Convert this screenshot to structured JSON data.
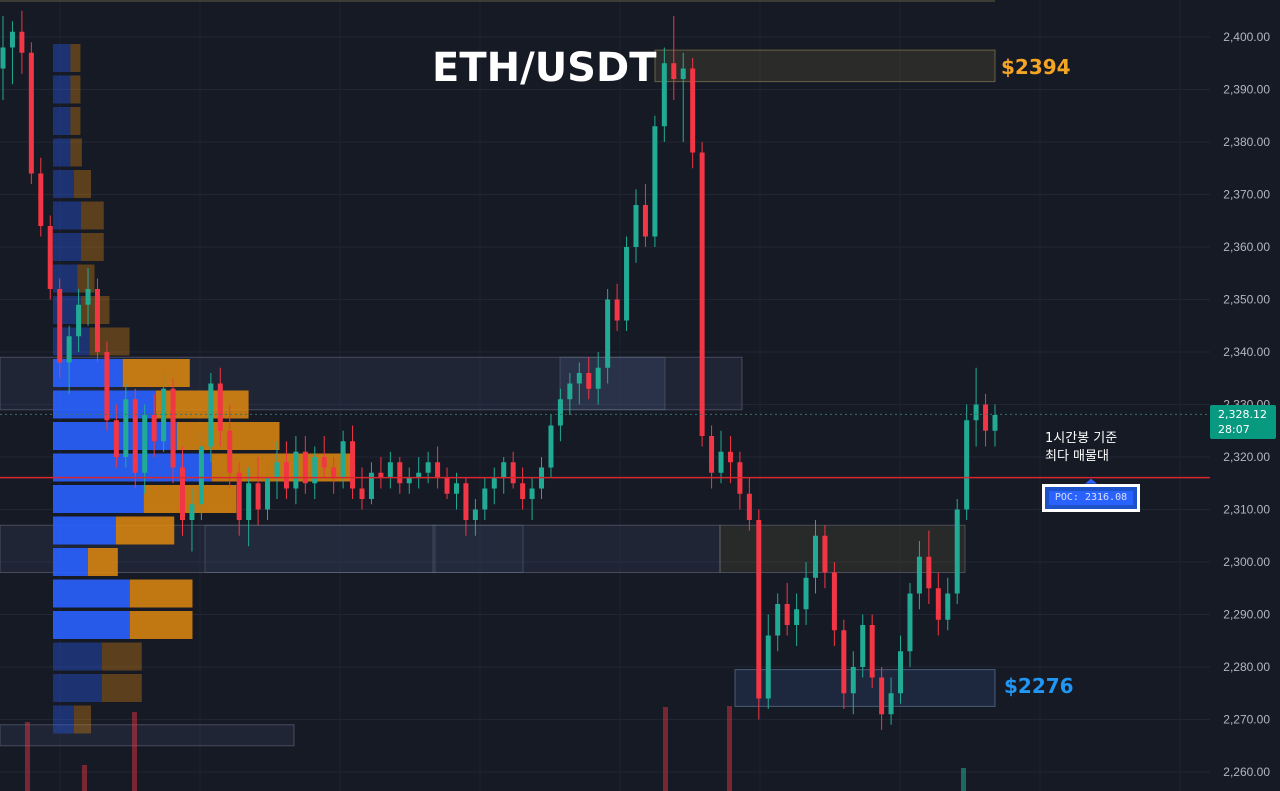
{
  "title": "ETH/USDT",
  "upper_zone_label": "$2394",
  "lower_zone_label": "$2276",
  "note": {
    "line1": "1시간봉 기준",
    "line2": "최다 매물대"
  },
  "poc_label": "POC: 2316.08",
  "current_price": {
    "price": "2,328.12",
    "countdown": "28:07"
  },
  "colors": {
    "background": "#161a25",
    "up": "#22ab94",
    "down": "#f23645",
    "upper_zone_label": "#f5a524",
    "lower_zone_label": "#2196f3",
    "poc_line": "#d9262f",
    "volume_profile_buy": "#2962ff",
    "volume_profile_sell": "#e08a0f",
    "axis_text": "#b2b5be"
  },
  "chart_data": {
    "type": "candlestick",
    "title": "ETH/USDT",
    "timeframe_note": "1시간봉 기준",
    "y_axis": {
      "ticks": [
        "2,400.00",
        "2,390.00",
        "2,380.00",
        "2,370.00",
        "2,360.00",
        "2,350.00",
        "2,340.00",
        "2,330.00",
        "2,320.00",
        "2,310.00",
        "2,300.00",
        "2,290.00",
        "2,280.00",
        "2,270.00",
        "2,260.00"
      ],
      "range": [
        2257,
        2406
      ]
    },
    "poc": 2316.08,
    "current_price": 2328.12,
    "resistance_zone": [
      2391.5,
      2397.5
    ],
    "support_zone": [
      2272.5,
      2279.5
    ],
    "supply_demand_zones": [
      {
        "low": 2329,
        "high": 2339
      },
      {
        "low": 2298,
        "high": 2307
      },
      {
        "low": 2298,
        "high": 2307
      },
      {
        "low": 2265,
        "high": 2269
      }
    ],
    "candles": [
      {
        "o": 2394,
        "h": 2404,
        "l": 2388,
        "c": 2398
      },
      {
        "o": 2398,
        "h": 2403,
        "l": 2391,
        "c": 2401
      },
      {
        "o": 2401,
        "h": 2405,
        "l": 2393,
        "c": 2397
      },
      {
        "o": 2397,
        "h": 2399,
        "l": 2372,
        "c": 2374
      },
      {
        "o": 2374,
        "h": 2377,
        "l": 2362,
        "c": 2364
      },
      {
        "o": 2364,
        "h": 2366,
        "l": 2350,
        "c": 2352
      },
      {
        "o": 2352,
        "h": 2354,
        "l": 2335,
        "c": 2338
      },
      {
        "o": 2338,
        "h": 2345,
        "l": 2332,
        "c": 2343
      },
      {
        "o": 2343,
        "h": 2352,
        "l": 2340,
        "c": 2349
      },
      {
        "o": 2349,
        "h": 2356,
        "l": 2345,
        "c": 2352
      },
      {
        "o": 2352,
        "h": 2354,
        "l": 2338,
        "c": 2340
      },
      {
        "o": 2340,
        "h": 2342,
        "l": 2325,
        "c": 2327
      },
      {
        "o": 2327,
        "h": 2330,
        "l": 2318,
        "c": 2320
      },
      {
        "o": 2320,
        "h": 2334,
        "l": 2318,
        "c": 2331
      },
      {
        "o": 2331,
        "h": 2333,
        "l": 2314,
        "c": 2317
      },
      {
        "o": 2317,
        "h": 2330,
        "l": 2313,
        "c": 2328
      },
      {
        "o": 2328,
        "h": 2332,
        "l": 2320,
        "c": 2323
      },
      {
        "o": 2323,
        "h": 2336,
        "l": 2321,
        "c": 2333
      },
      {
        "o": 2333,
        "h": 2335,
        "l": 2315,
        "c": 2318
      },
      {
        "o": 2318,
        "h": 2322,
        "l": 2305,
        "c": 2308
      },
      {
        "o": 2308,
        "h": 2314,
        "l": 2302,
        "c": 2311
      },
      {
        "o": 2311,
        "h": 2325,
        "l": 2308,
        "c": 2322
      },
      {
        "o": 2322,
        "h": 2336,
        "l": 2319,
        "c": 2334
      },
      {
        "o": 2334,
        "h": 2337,
        "l": 2322,
        "c": 2325
      },
      {
        "o": 2325,
        "h": 2330,
        "l": 2314,
        "c": 2317
      },
      {
        "o": 2317,
        "h": 2319,
        "l": 2305,
        "c": 2308
      },
      {
        "o": 2308,
        "h": 2318,
        "l": 2303,
        "c": 2315
      },
      {
        "o": 2315,
        "h": 2320,
        "l": 2307,
        "c": 2310
      },
      {
        "o": 2310,
        "h": 2318,
        "l": 2308,
        "c": 2316
      },
      {
        "o": 2316,
        "h": 2323,
        "l": 2312,
        "c": 2319
      },
      {
        "o": 2319,
        "h": 2323,
        "l": 2312,
        "c": 2314
      },
      {
        "o": 2314,
        "h": 2324,
        "l": 2311,
        "c": 2321
      },
      {
        "o": 2321,
        "h": 2324,
        "l": 2313,
        "c": 2315
      },
      {
        "o": 2315,
        "h": 2322,
        "l": 2312,
        "c": 2320
      },
      {
        "o": 2320,
        "h": 2324,
        "l": 2316,
        "c": 2318
      },
      {
        "o": 2318,
        "h": 2320,
        "l": 2313,
        "c": 2316
      },
      {
        "o": 2316,
        "h": 2325,
        "l": 2314,
        "c": 2323
      },
      {
        "o": 2323,
        "h": 2326,
        "l": 2312,
        "c": 2314
      },
      {
        "o": 2314,
        "h": 2318,
        "l": 2310,
        "c": 2312
      },
      {
        "o": 2312,
        "h": 2319,
        "l": 2311,
        "c": 2317
      },
      {
        "o": 2317,
        "h": 2320,
        "l": 2314,
        "c": 2316
      },
      {
        "o": 2316,
        "h": 2321,
        "l": 2314,
        "c": 2319
      },
      {
        "o": 2319,
        "h": 2320,
        "l": 2313,
        "c": 2315
      },
      {
        "o": 2315,
        "h": 2318,
        "l": 2313,
        "c": 2316
      },
      {
        "o": 2316,
        "h": 2320,
        "l": 2314,
        "c": 2317
      },
      {
        "o": 2317,
        "h": 2321,
        "l": 2315,
        "c": 2319
      },
      {
        "o": 2319,
        "h": 2322,
        "l": 2314,
        "c": 2316
      },
      {
        "o": 2316,
        "h": 2318,
        "l": 2312,
        "c": 2313
      },
      {
        "o": 2313,
        "h": 2317,
        "l": 2310,
        "c": 2315
      },
      {
        "o": 2315,
        "h": 2316,
        "l": 2305,
        "c": 2308
      },
      {
        "o": 2308,
        "h": 2312,
        "l": 2305,
        "c": 2310
      },
      {
        "o": 2310,
        "h": 2316,
        "l": 2308,
        "c": 2314
      },
      {
        "o": 2314,
        "h": 2318,
        "l": 2311,
        "c": 2316
      },
      {
        "o": 2316,
        "h": 2320,
        "l": 2313,
        "c": 2319
      },
      {
        "o": 2319,
        "h": 2321,
        "l": 2314,
        "c": 2315
      },
      {
        "o": 2315,
        "h": 2318,
        "l": 2310,
        "c": 2312
      },
      {
        "o": 2312,
        "h": 2316,
        "l": 2308,
        "c": 2314
      },
      {
        "o": 2314,
        "h": 2320,
        "l": 2312,
        "c": 2318
      },
      {
        "o": 2318,
        "h": 2328,
        "l": 2316,
        "c": 2326
      },
      {
        "o": 2326,
        "h": 2333,
        "l": 2323,
        "c": 2331
      },
      {
        "o": 2331,
        "h": 2336,
        "l": 2328,
        "c": 2334
      },
      {
        "o": 2334,
        "h": 2338,
        "l": 2330,
        "c": 2336
      },
      {
        "o": 2336,
        "h": 2339,
        "l": 2331,
        "c": 2333
      },
      {
        "o": 2333,
        "h": 2340,
        "l": 2330,
        "c": 2337
      },
      {
        "o": 2337,
        "h": 2352,
        "l": 2334,
        "c": 2350
      },
      {
        "o": 2350,
        "h": 2353,
        "l": 2344,
        "c": 2346
      },
      {
        "o": 2346,
        "h": 2362,
        "l": 2344,
        "c": 2360
      },
      {
        "o": 2360,
        "h": 2371,
        "l": 2357,
        "c": 2368
      },
      {
        "o": 2368,
        "h": 2372,
        "l": 2360,
        "c": 2362
      },
      {
        "o": 2362,
        "h": 2385,
        "l": 2360,
        "c": 2383
      },
      {
        "o": 2383,
        "h": 2398,
        "l": 2380,
        "c": 2395
      },
      {
        "o": 2395,
        "h": 2404,
        "l": 2388,
        "c": 2392
      },
      {
        "o": 2392,
        "h": 2397,
        "l": 2380,
        "c": 2394
      },
      {
        "o": 2394,
        "h": 2396,
        "l": 2375,
        "c": 2378
      },
      {
        "o": 2378,
        "h": 2380,
        "l": 2322,
        "c": 2324
      },
      {
        "o": 2324,
        "h": 2326,
        "l": 2314,
        "c": 2317
      },
      {
        "o": 2317,
        "h": 2325,
        "l": 2315,
        "c": 2321
      },
      {
        "o": 2321,
        "h": 2324,
        "l": 2315,
        "c": 2319
      },
      {
        "o": 2319,
        "h": 2321,
        "l": 2310,
        "c": 2313
      },
      {
        "o": 2313,
        "h": 2316,
        "l": 2306,
        "c": 2308
      },
      {
        "o": 2308,
        "h": 2310,
        "l": 2270,
        "c": 2274
      },
      {
        "o": 2274,
        "h": 2290,
        "l": 2272,
        "c": 2286
      },
      {
        "o": 2286,
        "h": 2294,
        "l": 2283,
        "c": 2292
      },
      {
        "o": 2292,
        "h": 2296,
        "l": 2286,
        "c": 2288
      },
      {
        "o": 2288,
        "h": 2294,
        "l": 2284,
        "c": 2291
      },
      {
        "o": 2291,
        "h": 2300,
        "l": 2288,
        "c": 2297
      },
      {
        "o": 2297,
        "h": 2308,
        "l": 2294,
        "c": 2305
      },
      {
        "o": 2305,
        "h": 2307,
        "l": 2295,
        "c": 2298
      },
      {
        "o": 2298,
        "h": 2300,
        "l": 2284,
        "c": 2287
      },
      {
        "o": 2287,
        "h": 2289,
        "l": 2272,
        "c": 2275
      },
      {
        "o": 2275,
        "h": 2283,
        "l": 2271,
        "c": 2280
      },
      {
        "o": 2280,
        "h": 2290,
        "l": 2278,
        "c": 2288
      },
      {
        "o": 2288,
        "h": 2290,
        "l": 2276,
        "c": 2278
      },
      {
        "o": 2278,
        "h": 2280,
        "l": 2268,
        "c": 2271
      },
      {
        "o": 2271,
        "h": 2278,
        "l": 2269,
        "c": 2275
      },
      {
        "o": 2275,
        "h": 2286,
        "l": 2273,
        "c": 2283
      },
      {
        "o": 2283,
        "h": 2296,
        "l": 2280,
        "c": 2294
      },
      {
        "o": 2294,
        "h": 2304,
        "l": 2291,
        "c": 2301
      },
      {
        "o": 2301,
        "h": 2306,
        "l": 2292,
        "c": 2295
      },
      {
        "o": 2295,
        "h": 2298,
        "l": 2286,
        "c": 2289
      },
      {
        "o": 2289,
        "h": 2297,
        "l": 2287,
        "c": 2294
      },
      {
        "o": 2294,
        "h": 2312,
        "l": 2292,
        "c": 2310
      },
      {
        "o": 2310,
        "h": 2330,
        "l": 2308,
        "c": 2327
      },
      {
        "o": 2327,
        "h": 2337,
        "l": 2322,
        "c": 2330
      },
      {
        "o": 2330,
        "h": 2332,
        "l": 2322,
        "c": 2325
      },
      {
        "o": 2325,
        "h": 2330,
        "l": 2322,
        "c": 2328
      }
    ],
    "volume_profile": [
      {
        "price": 2396,
        "buy": 0.1,
        "sell": 0.07
      },
      {
        "price": 2390,
        "buy": 0.1,
        "sell": 0.07
      },
      {
        "price": 2384,
        "buy": 0.1,
        "sell": 0.07
      },
      {
        "price": 2378,
        "buy": 0.1,
        "sell": 0.08
      },
      {
        "price": 2372,
        "buy": 0.12,
        "sell": 0.12
      },
      {
        "price": 2366,
        "buy": 0.16,
        "sell": 0.16
      },
      {
        "price": 2360,
        "buy": 0.16,
        "sell": 0.16
      },
      {
        "price": 2354,
        "buy": 0.14,
        "sell": 0.12
      },
      {
        "price": 2348,
        "buy": 0.16,
        "sell": 0.2
      },
      {
        "price": 2342,
        "buy": 0.21,
        "sell": 0.28
      },
      {
        "price": 2336,
        "buy": 0.4,
        "sell": 0.47
      },
      {
        "price": 2330,
        "buy": 0.59,
        "sell": 0.65
      },
      {
        "price": 2324,
        "buy": 0.71,
        "sell": 0.72
      },
      {
        "price": 2318,
        "buy": 0.91,
        "sell": 1.0
      },
      {
        "price": 2312,
        "buy": 0.52,
        "sell": 0.65
      },
      {
        "price": 2306,
        "buy": 0.36,
        "sell": 0.41
      },
      {
        "price": 2300,
        "buy": 0.2,
        "sell": 0.21
      },
      {
        "price": 2294,
        "buy": 0.44,
        "sell": 0.44
      },
      {
        "price": 2288,
        "buy": 0.44,
        "sell": 0.44
      },
      {
        "price": 2282,
        "buy": 0.28,
        "sell": 0.28
      },
      {
        "price": 2276,
        "buy": 0.28,
        "sell": 0.28
      },
      {
        "price": 2270,
        "buy": 0.12,
        "sell": 0.12
      }
    ]
  }
}
